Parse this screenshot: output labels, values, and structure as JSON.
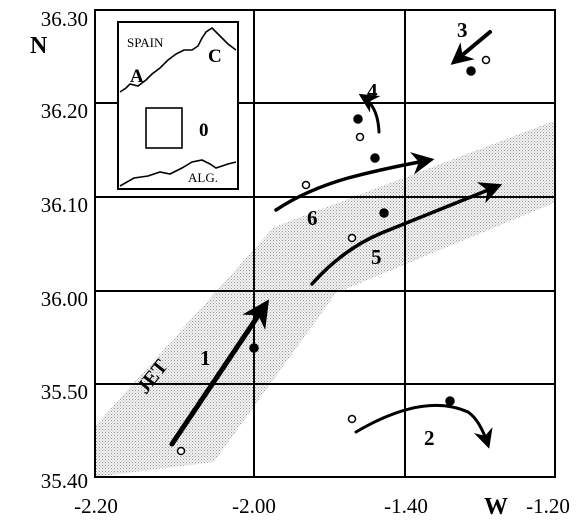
{
  "axes": {
    "latitude_ticks": [
      "36.30",
      "36.20",
      "36.10",
      "36.00",
      "35.50",
      "35.40"
    ],
    "longitude_ticks": [
      "-2.20",
      "-2.00",
      "-1.40",
      "-1.20"
    ],
    "lat_letter": "N",
    "lon_letter": "W"
  },
  "inset": {
    "labels": {
      "spain": "SPAIN",
      "a": "A",
      "c": "C",
      "zero": "0",
      "alg": "ALG."
    }
  },
  "jet": {
    "label": "JET"
  },
  "trajectories": [
    {
      "id": "1",
      "label": "1"
    },
    {
      "id": "2",
      "label": "2"
    },
    {
      "id": "3",
      "label": "3"
    },
    {
      "id": "4",
      "label": "4"
    },
    {
      "id": "5",
      "label": "5"
    },
    {
      "id": "6",
      "label": "6"
    }
  ]
}
